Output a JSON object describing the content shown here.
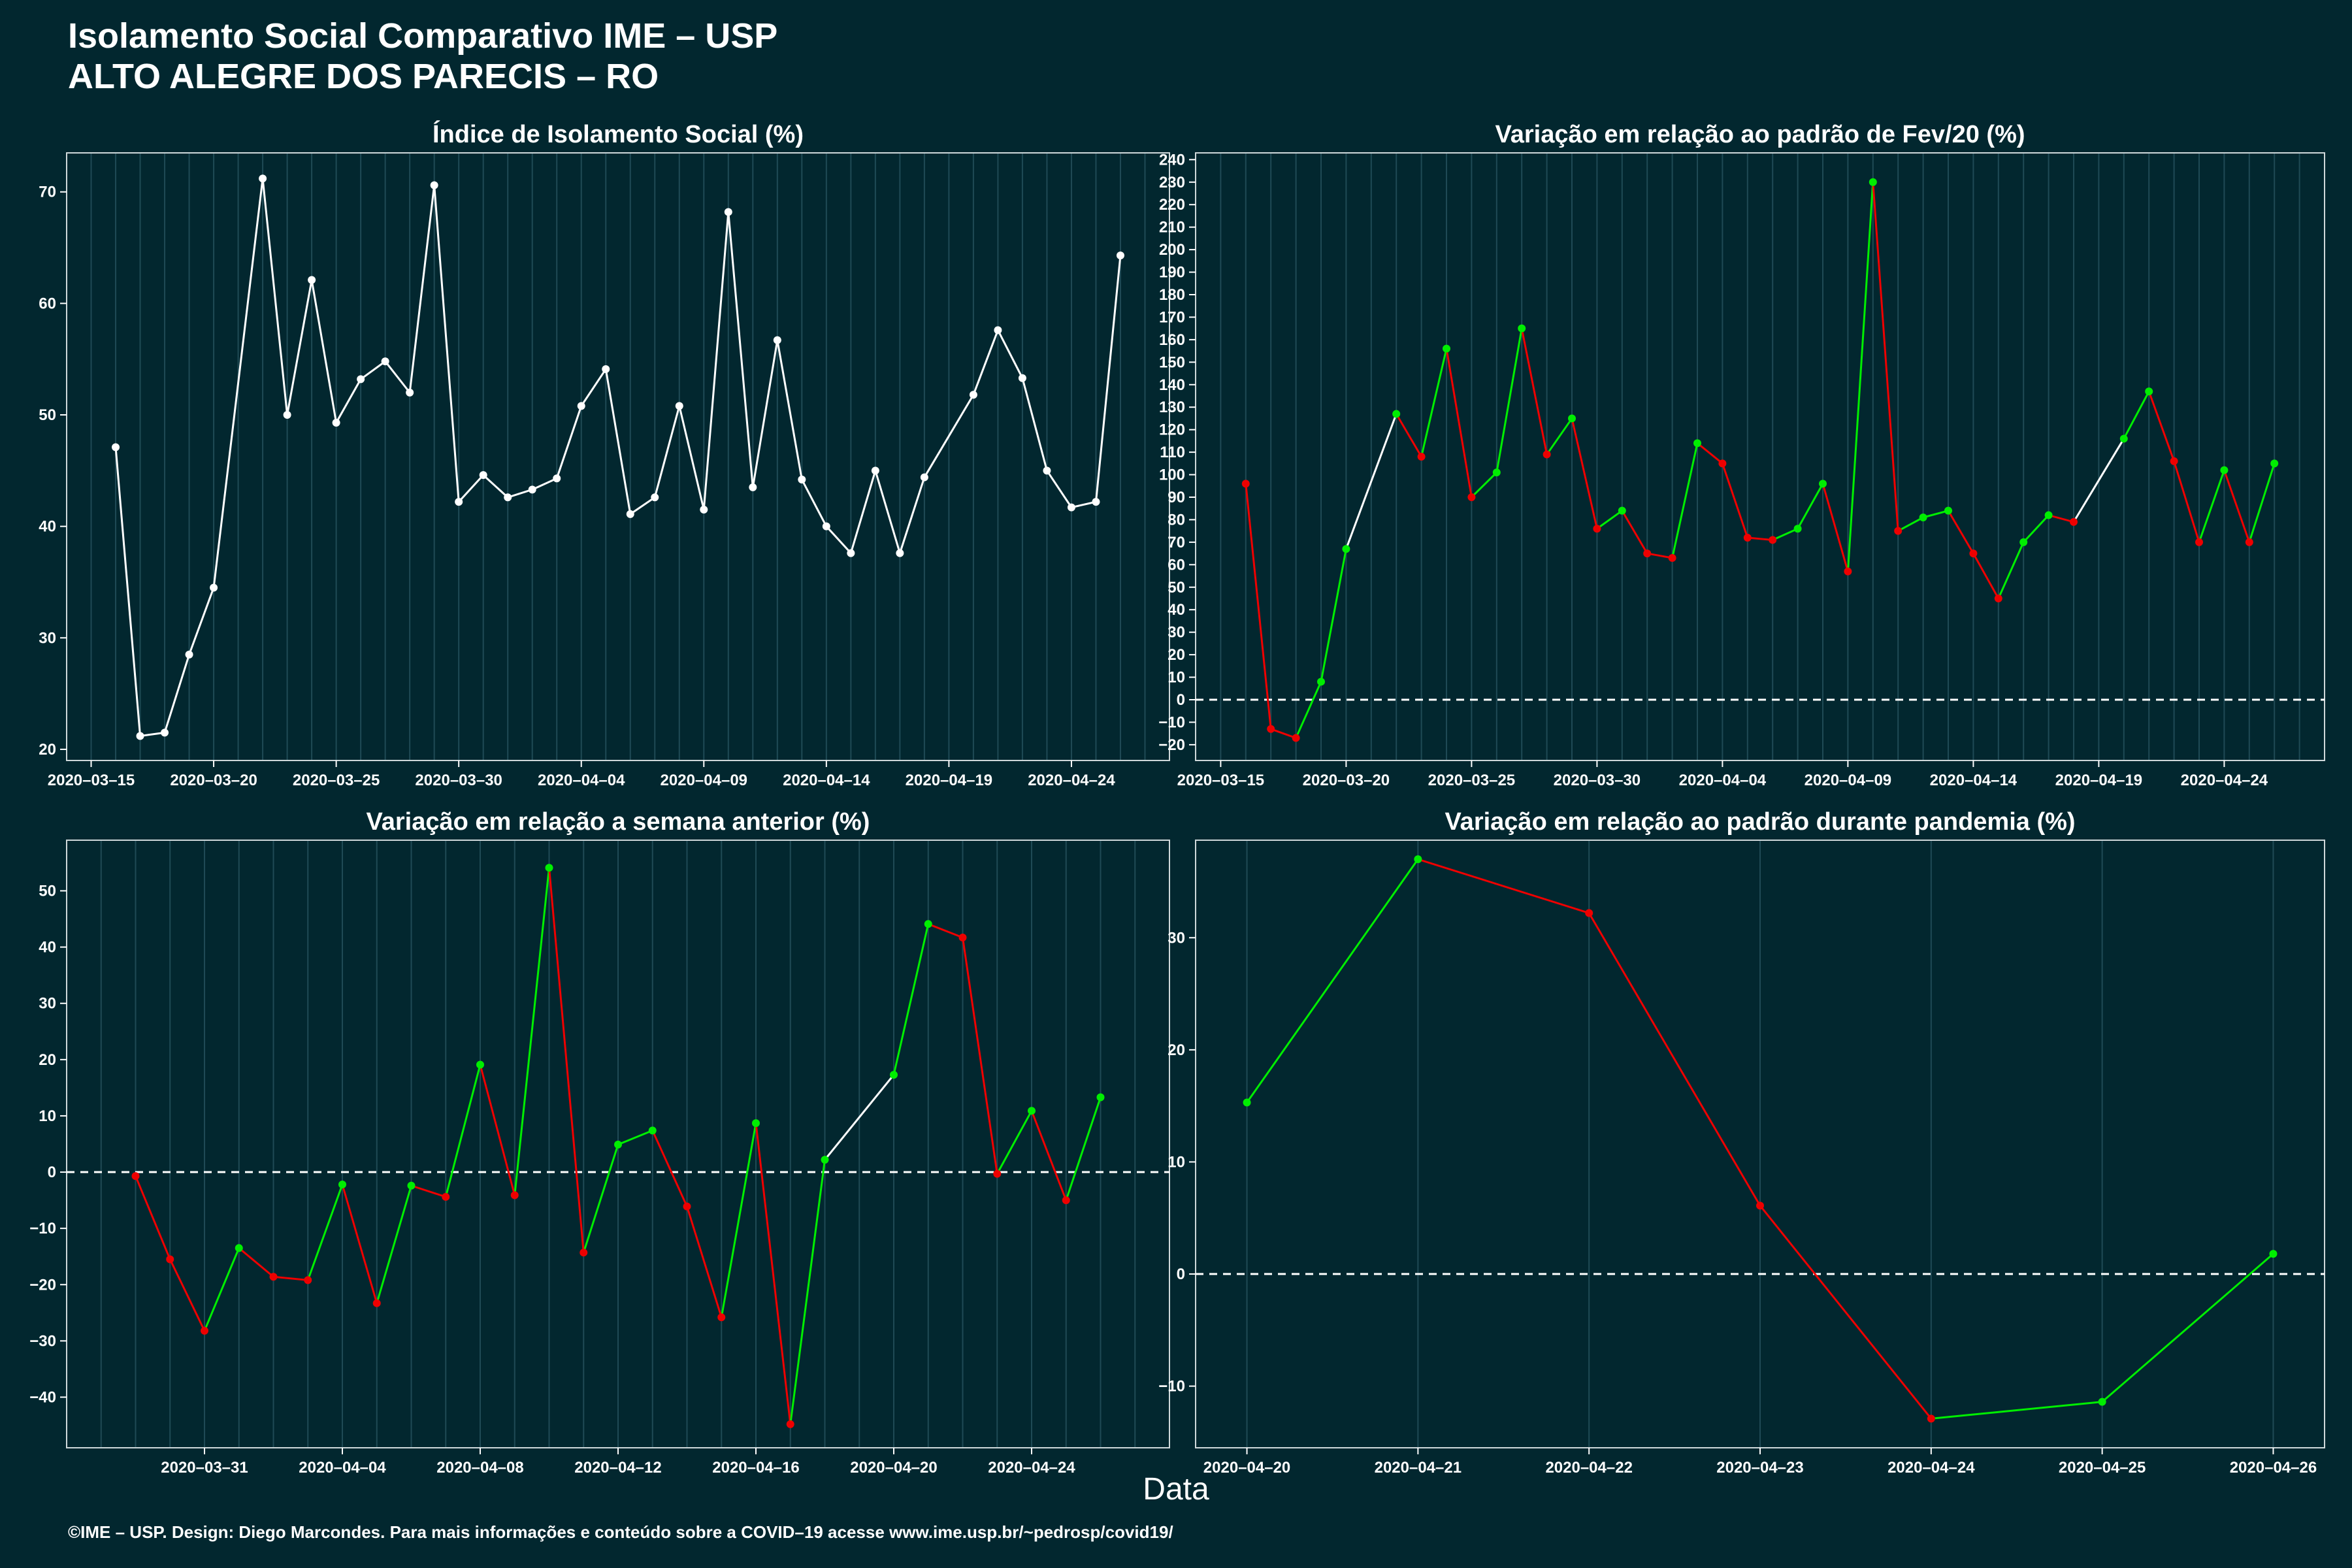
{
  "header": {
    "title_line1": "Isolamento Social Comparativo IME – USP",
    "title_line2": "ALTO ALEGRE DOS PARECIS – RO"
  },
  "x_axis_label": "Data",
  "footer": "©IME – USP. Design: Diego Marcondes. Para mais informações e conteúdo sobre a COVID–19 acesse www.ime.usp.br/~pedrosp/covid19/",
  "colors": {
    "background": "#02272f",
    "line": "#ffffff",
    "positive": "#00ee00",
    "negative": "#ee0000",
    "zero_line": "#ffffff",
    "grid": "#1f4a55"
  },
  "chart_data": [
    {
      "type": "line",
      "title": "Índice de Isolamento Social (%)",
      "xlabel": "Data",
      "ylabel": "",
      "x_tick_labels": [
        "2020–03–15",
        "2020–03–20",
        "2020–03–25",
        "2020–03–30",
        "2020–04–04",
        "2020–04–09",
        "2020–04–14",
        "2020–04–19",
        "2020–04–24"
      ],
      "y_ticks": [
        20,
        30,
        40,
        50,
        60,
        70
      ],
      "xlim": [
        "2020-03-14",
        "2020-04-28"
      ],
      "ylim": [
        19,
        73.5
      ],
      "zero_line": false,
      "color_mode": "single",
      "series": [
        {
          "x": [
            "2020-03-16",
            "2020-03-17",
            "2020-03-18",
            "2020-03-19",
            "2020-03-20",
            "2020-03-22",
            "2020-03-23",
            "2020-03-24",
            "2020-03-25",
            "2020-03-26",
            "2020-03-27",
            "2020-03-28",
            "2020-03-29",
            "2020-03-30",
            "2020-03-31",
            "2020-04-01",
            "2020-04-02",
            "2020-04-03",
            "2020-04-04",
            "2020-04-05",
            "2020-04-06",
            "2020-04-07",
            "2020-04-08",
            "2020-04-09",
            "2020-04-10",
            "2020-04-11",
            "2020-04-12",
            "2020-04-13",
            "2020-04-14",
            "2020-04-15",
            "2020-04-16",
            "2020-04-17",
            "2020-04-18",
            "2020-04-20",
            "2020-04-21",
            "2020-04-22",
            "2020-04-23",
            "2020-04-24",
            "2020-04-25",
            "2020-04-26"
          ],
          "y": [
            47.1,
            21.2,
            21.5,
            28.5,
            34.5,
            71.2,
            50.0,
            62.1,
            49.3,
            53.2,
            54.8,
            52.0,
            70.6,
            42.2,
            44.6,
            42.6,
            43.3,
            44.3,
            50.8,
            54.1,
            41.1,
            42.6,
            50.8,
            41.5,
            68.2,
            43.5,
            56.7,
            44.2,
            40.0,
            37.6,
            45.0,
            37.6,
            44.4,
            51.8,
            57.6,
            53.3,
            45.0,
            41.7,
            42.2,
            64.3
          ]
        }
      ]
    },
    {
      "type": "line",
      "title": "Variação em relação ao padrão de Fev/20 (%)",
      "xlabel": "Data",
      "ylabel": "",
      "x_tick_labels": [
        "2020–03–15",
        "2020–03–20",
        "2020–03–25",
        "2020–03–30",
        "2020–04–04",
        "2020–04–09",
        "2020–04–14",
        "2020–04–19",
        "2020–04–24"
      ],
      "y_ticks": [
        -20,
        -10,
        0,
        10,
        20,
        30,
        40,
        50,
        60,
        70,
        80,
        90,
        100,
        110,
        120,
        130,
        140,
        150,
        160,
        170,
        180,
        190,
        200,
        210,
        220,
        230,
        240
      ],
      "xlim": [
        "2020-03-14",
        "2020-04-28"
      ],
      "ylim": [
        -27,
        243
      ],
      "zero_line": true,
      "color_mode": "sign",
      "series": [
        {
          "x": [
            "2020-03-16",
            "2020-03-17",
            "2020-03-18",
            "2020-03-19",
            "2020-03-20",
            "2020-03-22",
            "2020-03-23",
            "2020-03-24",
            "2020-03-25",
            "2020-03-26",
            "2020-03-27",
            "2020-03-28",
            "2020-03-29",
            "2020-03-30",
            "2020-03-31",
            "2020-04-01",
            "2020-04-02",
            "2020-04-03",
            "2020-04-04",
            "2020-04-05",
            "2020-04-06",
            "2020-04-07",
            "2020-04-08",
            "2020-04-09",
            "2020-04-10",
            "2020-04-11",
            "2020-04-12",
            "2020-04-13",
            "2020-04-14",
            "2020-04-15",
            "2020-04-16",
            "2020-04-17",
            "2020-04-18",
            "2020-04-20",
            "2020-04-21",
            "2020-04-22",
            "2020-04-23",
            "2020-04-24",
            "2020-04-25",
            "2020-04-26"
          ],
          "y": [
            96,
            -13,
            -17,
            8,
            67,
            127,
            108,
            156,
            90,
            101,
            165,
            109,
            125,
            76,
            84,
            65,
            63,
            114,
            105,
            72,
            71,
            76,
            96,
            57,
            230,
            75,
            81,
            84,
            65,
            45,
            70,
            82,
            79,
            116,
            137,
            106,
            70,
            102,
            70,
            105
          ]
        }
      ]
    },
    {
      "type": "line",
      "title": "Variação em relação a semana anterior (%)",
      "xlabel": "Data",
      "ylabel": "",
      "x_tick_labels": [
        "2020–03–31",
        "2020–04–04",
        "2020–04–08",
        "2020–04–12",
        "2020–04–16",
        "2020–04–20",
        "2020–04–24"
      ],
      "y_ticks": [
        -40,
        -30,
        -20,
        -10,
        0,
        10,
        20,
        30,
        40,
        50
      ],
      "xlim": [
        "2020-03-27",
        "2020-04-28"
      ],
      "ylim": [
        -49,
        59
      ],
      "zero_line": true,
      "color_mode": "sign",
      "series": [
        {
          "x": [
            "2020-03-29",
            "2020-03-30",
            "2020-03-31",
            "2020-04-01",
            "2020-04-02",
            "2020-04-03",
            "2020-04-04",
            "2020-04-05",
            "2020-04-06",
            "2020-04-07",
            "2020-04-08",
            "2020-04-09",
            "2020-04-10",
            "2020-04-11",
            "2020-04-12",
            "2020-04-13",
            "2020-04-14",
            "2020-04-15",
            "2020-04-16",
            "2020-04-17",
            "2020-04-18",
            "2020-04-20",
            "2020-04-21",
            "2020-04-22",
            "2020-04-23",
            "2020-04-24",
            "2020-04-25",
            "2020-04-26"
          ],
          "y": [
            -0.7,
            -15.5,
            -28.2,
            -13.5,
            -18.6,
            -19.2,
            -2.2,
            -23.3,
            -2.4,
            -4.4,
            19.1,
            -4.1,
            54.1,
            -14.3,
            4.9,
            7.4,
            -6.1,
            -25.8,
            8.7,
            -44.8,
            2.2,
            17.3,
            44.1,
            41.7,
            -0.3,
            10.9,
            -5.0,
            13.3
          ]
        }
      ]
    },
    {
      "type": "line",
      "title": "Variação em relação ao padrão durante pandemia (%)",
      "xlabel": "Data",
      "ylabel": "",
      "x_tick_labels": [
        "2020–04–20",
        "2020–04–21",
        "2020–04–22",
        "2020–04–23",
        "2020–04–24",
        "2020–04–25",
        "2020–04–26"
      ],
      "y_ticks": [
        -10,
        0,
        10,
        20,
        30
      ],
      "xlim": [
        "2020-04-19.7",
        "2020-04-26.3"
      ],
      "ylim": [
        -15.5,
        38.7
      ],
      "zero_line": true,
      "color_mode": "sign",
      "series": [
        {
          "x": [
            "2020-04-20",
            "2020-04-21",
            "2020-04-22",
            "2020-04-23",
            "2020-04-24",
            "2020-04-25",
            "2020-04-26"
          ],
          "y": [
            15.3,
            37.0,
            32.2,
            6.1,
            -12.9,
            -11.4,
            1.8
          ]
        }
      ]
    }
  ]
}
